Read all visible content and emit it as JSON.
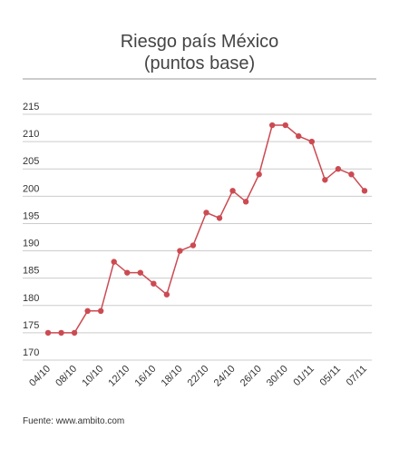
{
  "chart_data": {
    "type": "line",
    "title": "Riesgo país México",
    "subtitle": "(puntos base)",
    "source": "Fuente: www.ambito.com",
    "categories": [
      "04/10",
      null,
      "08/10",
      null,
      "10/10",
      null,
      "12/10",
      null,
      "16/10",
      null,
      "18/10",
      null,
      "22/10",
      null,
      "24/10",
      null,
      "26/10",
      null,
      "30/10",
      null,
      "01/11",
      null,
      "05/11",
      null,
      "07/11"
    ],
    "series": [
      {
        "name": "Riesgo país",
        "color": "#cc4a52",
        "values": [
          175,
          175,
          175,
          179,
          179,
          188,
          186,
          186,
          184,
          182,
          190,
          191,
          197,
          196,
          201,
          199,
          204,
          213,
          213,
          211,
          210,
          203,
          205,
          204,
          201
        ]
      }
    ],
    "ylim": [
      170,
      215
    ],
    "yticks": [
      170,
      175,
      180,
      185,
      190,
      195,
      200,
      205,
      210,
      215
    ],
    "grid": true
  }
}
